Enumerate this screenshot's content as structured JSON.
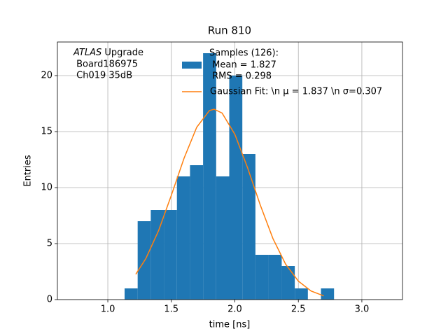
{
  "chart_data": {
    "type": "histogram",
    "title": "Run 810",
    "xlabel": "time [ns]",
    "ylabel": "Entries",
    "annotation": {
      "experiment": "ATLAS",
      "lines": [
        " Upgrade",
        " Board186975",
        " Ch019 35dB"
      ]
    },
    "bins": [
      1.132,
      1.235,
      1.338,
      1.441,
      1.544,
      1.647,
      1.75,
      1.853,
      1.956,
      2.059,
      2.162,
      2.265,
      2.369,
      2.472,
      2.575,
      2.678,
      2.781
    ],
    "counts": [
      1,
      7,
      8,
      8,
      11,
      12,
      22,
      11,
      20,
      13,
      4,
      4,
      3,
      1,
      0,
      1
    ],
    "name": [
      "Samples (126):",
      " Mean = 1.827",
      " RMS = 0.298"
    ],
    "color": "#1f77b4",
    "fit": {
      "name": "Gaussian Fit: \\n μ = 1.837 \\n σ=0.307",
      "color": "#ff7f0e",
      "x": [
        1.22,
        1.3,
        1.4,
        1.5,
        1.6,
        1.7,
        1.8,
        1.837,
        1.9,
        2.0,
        2.1,
        2.2,
        2.3,
        2.4,
        2.5,
        2.6,
        2.7
      ],
      "values": [
        2.26,
        3.68,
        6.17,
        9.31,
        12.62,
        15.39,
        16.88,
        17,
        16.65,
        14.76,
        11.78,
        8.45,
        5.45,
        3.16,
        1.65,
        0.77,
        0.33
      ]
    },
    "xlim": [
      0.603,
      3.32
    ],
    "ylim": [
      0,
      23
    ],
    "xticks": [
      {
        "value": 1,
        "label": "1.0"
      },
      {
        "value": 1.5,
        "label": "1.5"
      },
      {
        "value": 2,
        "label": "2.0"
      },
      {
        "value": 2.5,
        "label": "2.5"
      },
      {
        "value": 3,
        "label": "3.0"
      }
    ],
    "yticks": [
      0,
      5,
      10,
      15,
      20
    ],
    "grid": true
  }
}
